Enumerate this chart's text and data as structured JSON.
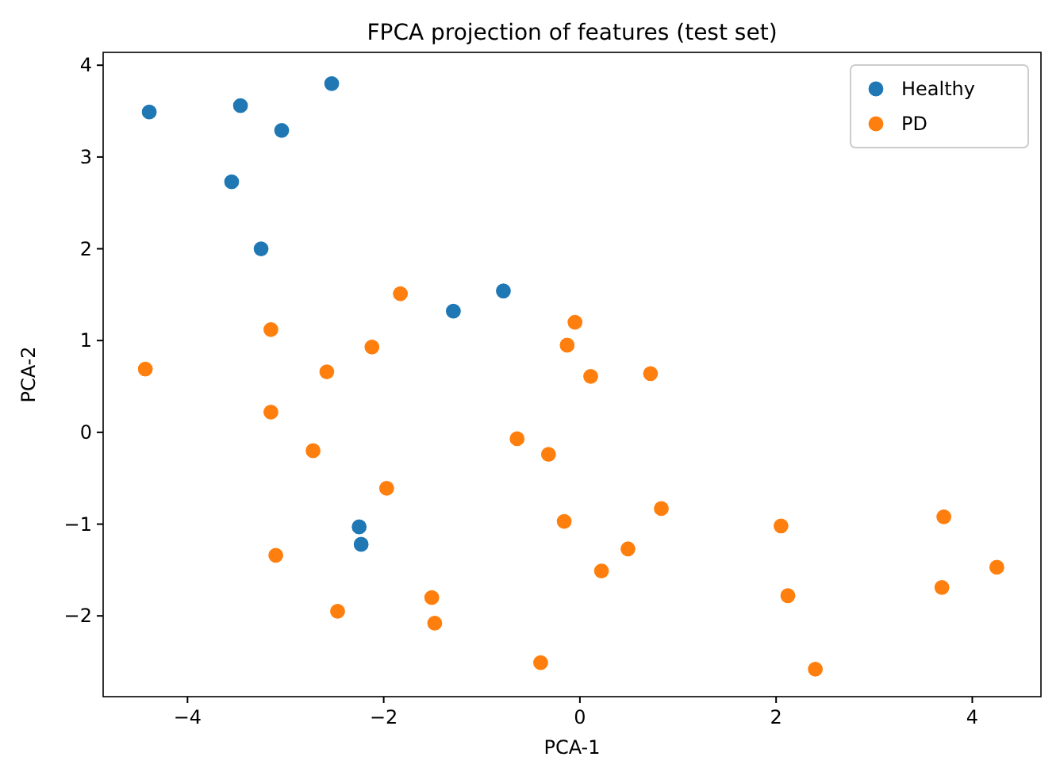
{
  "chart_data": {
    "type": "scatter",
    "title": "FPCA projection of features (test set)",
    "xlabel": "PCA-1",
    "ylabel": "PCA-2",
    "xlim": [
      -4.86,
      4.7
    ],
    "ylim": [
      -2.88,
      4.14
    ],
    "xticks": [
      -4,
      -2,
      0,
      2,
      4
    ],
    "yticks": [
      -2,
      -1,
      0,
      1,
      2,
      3,
      4
    ],
    "grid": false,
    "legend": "top right",
    "marker": "circle",
    "series": [
      {
        "name": "Healthy",
        "color": "#1f77b4",
        "x": [
          -4.39,
          -3.46,
          -2.53,
          -3.04,
          -3.55,
          -3.25,
          -1.29,
          -0.78,
          -2.25,
          -2.23
        ],
        "values": [
          3.49,
          3.56,
          3.8,
          3.29,
          2.73,
          2.0,
          1.32,
          1.54,
          -1.03,
          -1.22
        ]
      },
      {
        "name": "PD",
        "color": "#ff7f0e",
        "x": [
          -4.43,
          -3.15,
          -3.15,
          -3.1,
          -2.72,
          -2.58,
          -2.12,
          -1.83,
          -1.97,
          -2.47,
          -1.51,
          -1.48,
          -0.64,
          -0.32,
          -0.4,
          -0.16,
          -0.13,
          -0.05,
          0.11,
          0.72,
          0.22,
          0.49,
          0.83,
          2.05,
          2.12,
          2.4,
          3.71,
          3.69,
          4.25
        ],
        "values": [
          0.69,
          1.12,
          0.22,
          -1.34,
          -0.2,
          0.66,
          0.93,
          1.51,
          -0.61,
          -1.95,
          -1.8,
          -2.08,
          -0.07,
          -0.24,
          -2.51,
          -0.97,
          0.95,
          1.2,
          0.61,
          0.64,
          -1.51,
          -1.27,
          -0.83,
          -1.02,
          -1.78,
          -2.58,
          -0.92,
          -1.69,
          -1.47
        ]
      }
    ]
  }
}
